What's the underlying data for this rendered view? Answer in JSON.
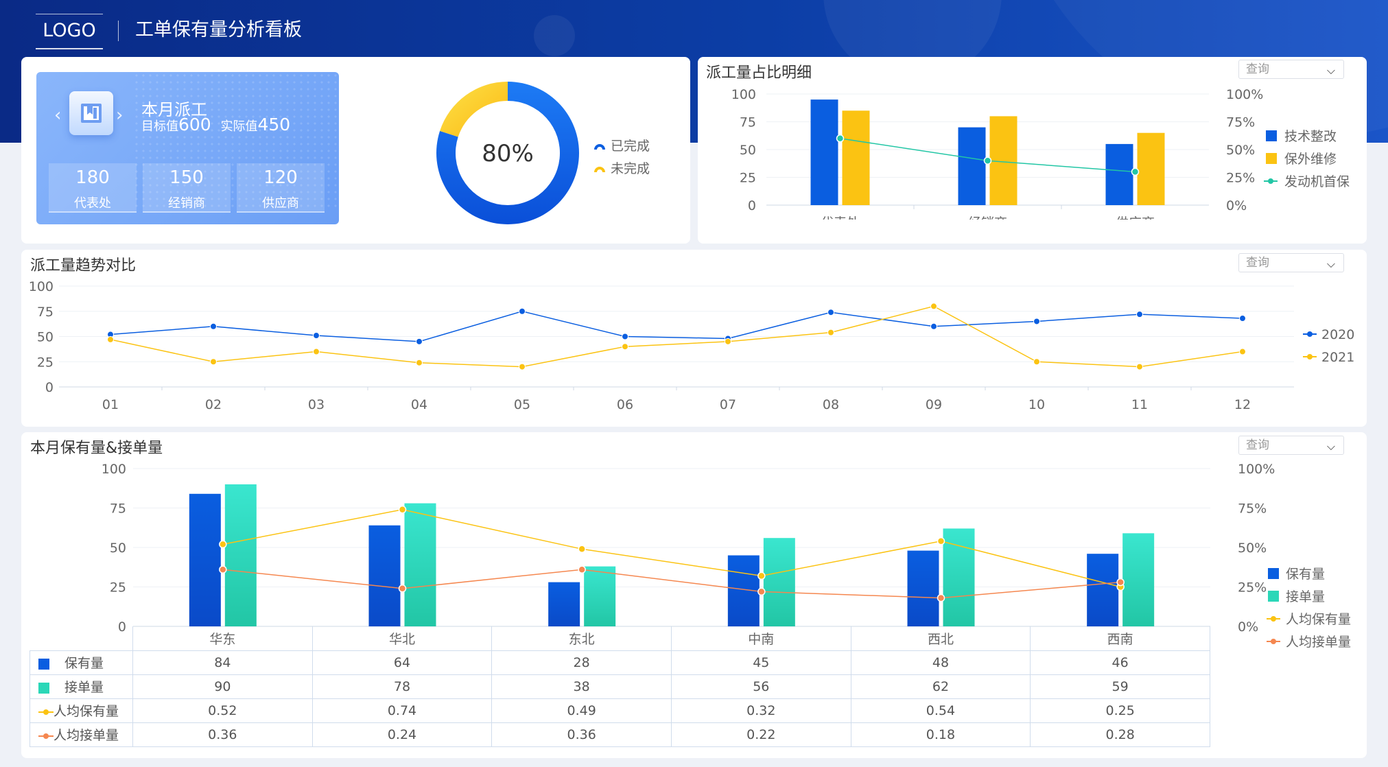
{
  "header": {
    "logo": "LOGO",
    "title": "工单保有量分析看板"
  },
  "card": {
    "title": "本月派工",
    "target_label": "目标值",
    "target_value": "600",
    "actual_label": "实际值",
    "actual_value": "450",
    "stats": [
      {
        "value": "180",
        "label": "代表处"
      },
      {
        "value": "150",
        "label": "经销商"
      },
      {
        "value": "120",
        "label": "供应商"
      }
    ]
  },
  "donut": {
    "center_text": "80%",
    "completed_fraction": 0.8,
    "legend": [
      {
        "name": "已完成",
        "color": "#0a5ee0"
      },
      {
        "name": "未完成",
        "color": "#fbc312"
      }
    ]
  },
  "select_label": "查询",
  "panels": {
    "ratio_title": "派工量占比明细",
    "trend_title": "派工量趋势对比",
    "month_title": "本月保有量&接单量"
  },
  "colors": {
    "blue": "#0a5ee0",
    "yellow": "#fbc312",
    "teal": "#2bd7b8",
    "orange": "#f5874f",
    "green_line": "#22c6a5"
  },
  "chart_data": [
    {
      "type": "bar",
      "categories": [
        "代表处",
        "经销商",
        "供应商"
      ],
      "series": [
        {
          "name": "技术整改",
          "values": [
            95,
            70,
            55
          ],
          "color": "#0a5ee0"
        },
        {
          "name": "保外维修",
          "values": [
            85,
            80,
            65
          ],
          "color": "#fbc312"
        },
        {
          "name": "发动机首保",
          "kind": "line",
          "axis": "right",
          "values": [
            60,
            40,
            30
          ],
          "color": "#22c6a5"
        }
      ],
      "ylim": [
        0,
        100
      ],
      "yticks": [
        "0",
        "25",
        "50",
        "75",
        "100"
      ],
      "y2ticks": [
        "0%",
        "25%",
        "50%",
        "75%",
        "100%"
      ],
      "legend_position": "right"
    },
    {
      "type": "line",
      "categories": [
        "01",
        "02",
        "03",
        "04",
        "05",
        "06",
        "07",
        "08",
        "09",
        "10",
        "11",
        "12"
      ],
      "series": [
        {
          "name": "2020",
          "values": [
            52,
            60,
            51,
            45,
            75,
            50,
            48,
            74,
            60,
            65,
            72,
            68
          ],
          "color": "#0a5ee0"
        },
        {
          "name": "2021",
          "values": [
            47,
            25,
            35,
            24,
            20,
            40,
            45,
            54,
            80,
            25,
            20,
            35
          ],
          "color": "#fbc312"
        }
      ],
      "ylim": [
        0,
        100
      ],
      "yticks": [
        "0",
        "25",
        "50",
        "75",
        "100"
      ],
      "legend_position": "right"
    },
    {
      "type": "bar",
      "categories": [
        "华东",
        "华北",
        "东北",
        "中南",
        "西北",
        "西南"
      ],
      "series": [
        {
          "name": "保有量",
          "values": [
            84,
            64,
            28,
            45,
            48,
            46
          ],
          "color": "#0a5ee0"
        },
        {
          "name": "接单量",
          "values": [
            90,
            78,
            38,
            56,
            62,
            59
          ],
          "color": "#2bd7b8"
        },
        {
          "name": "人均保有量",
          "kind": "line",
          "axis": "right",
          "values": [
            0.52,
            0.74,
            0.49,
            0.32,
            0.54,
            0.25
          ],
          "color": "#fbc312"
        },
        {
          "name": "人均接单量",
          "kind": "line",
          "axis": "right",
          "values": [
            0.36,
            0.24,
            0.36,
            0.22,
            0.18,
            0.28
          ],
          "color": "#f5874f"
        }
      ],
      "ylim": [
        0,
        100
      ],
      "y2lim": [
        0,
        1
      ],
      "yticks": [
        "0",
        "25",
        "50",
        "75",
        "100"
      ],
      "y2ticks": [
        "0%",
        "25%",
        "50%",
        "75%",
        "100%"
      ],
      "legend_position": "right",
      "data_table": {
        "rows": [
          {
            "name": "保有量",
            "values": [
              "84",
              "64",
              "28",
              "45",
              "48",
              "46"
            ]
          },
          {
            "name": "接单量",
            "values": [
              "90",
              "78",
              "38",
              "56",
              "62",
              "59"
            ]
          },
          {
            "name": "人均保有量",
            "values": [
              "0.52",
              "0.74",
              "0.49",
              "0.32",
              "0.54",
              "0.25"
            ]
          },
          {
            "name": "人均接单量",
            "values": [
              "0.36",
              "0.24",
              "0.36",
              "0.22",
              "0.18",
              "0.28"
            ]
          }
        ]
      }
    }
  ]
}
